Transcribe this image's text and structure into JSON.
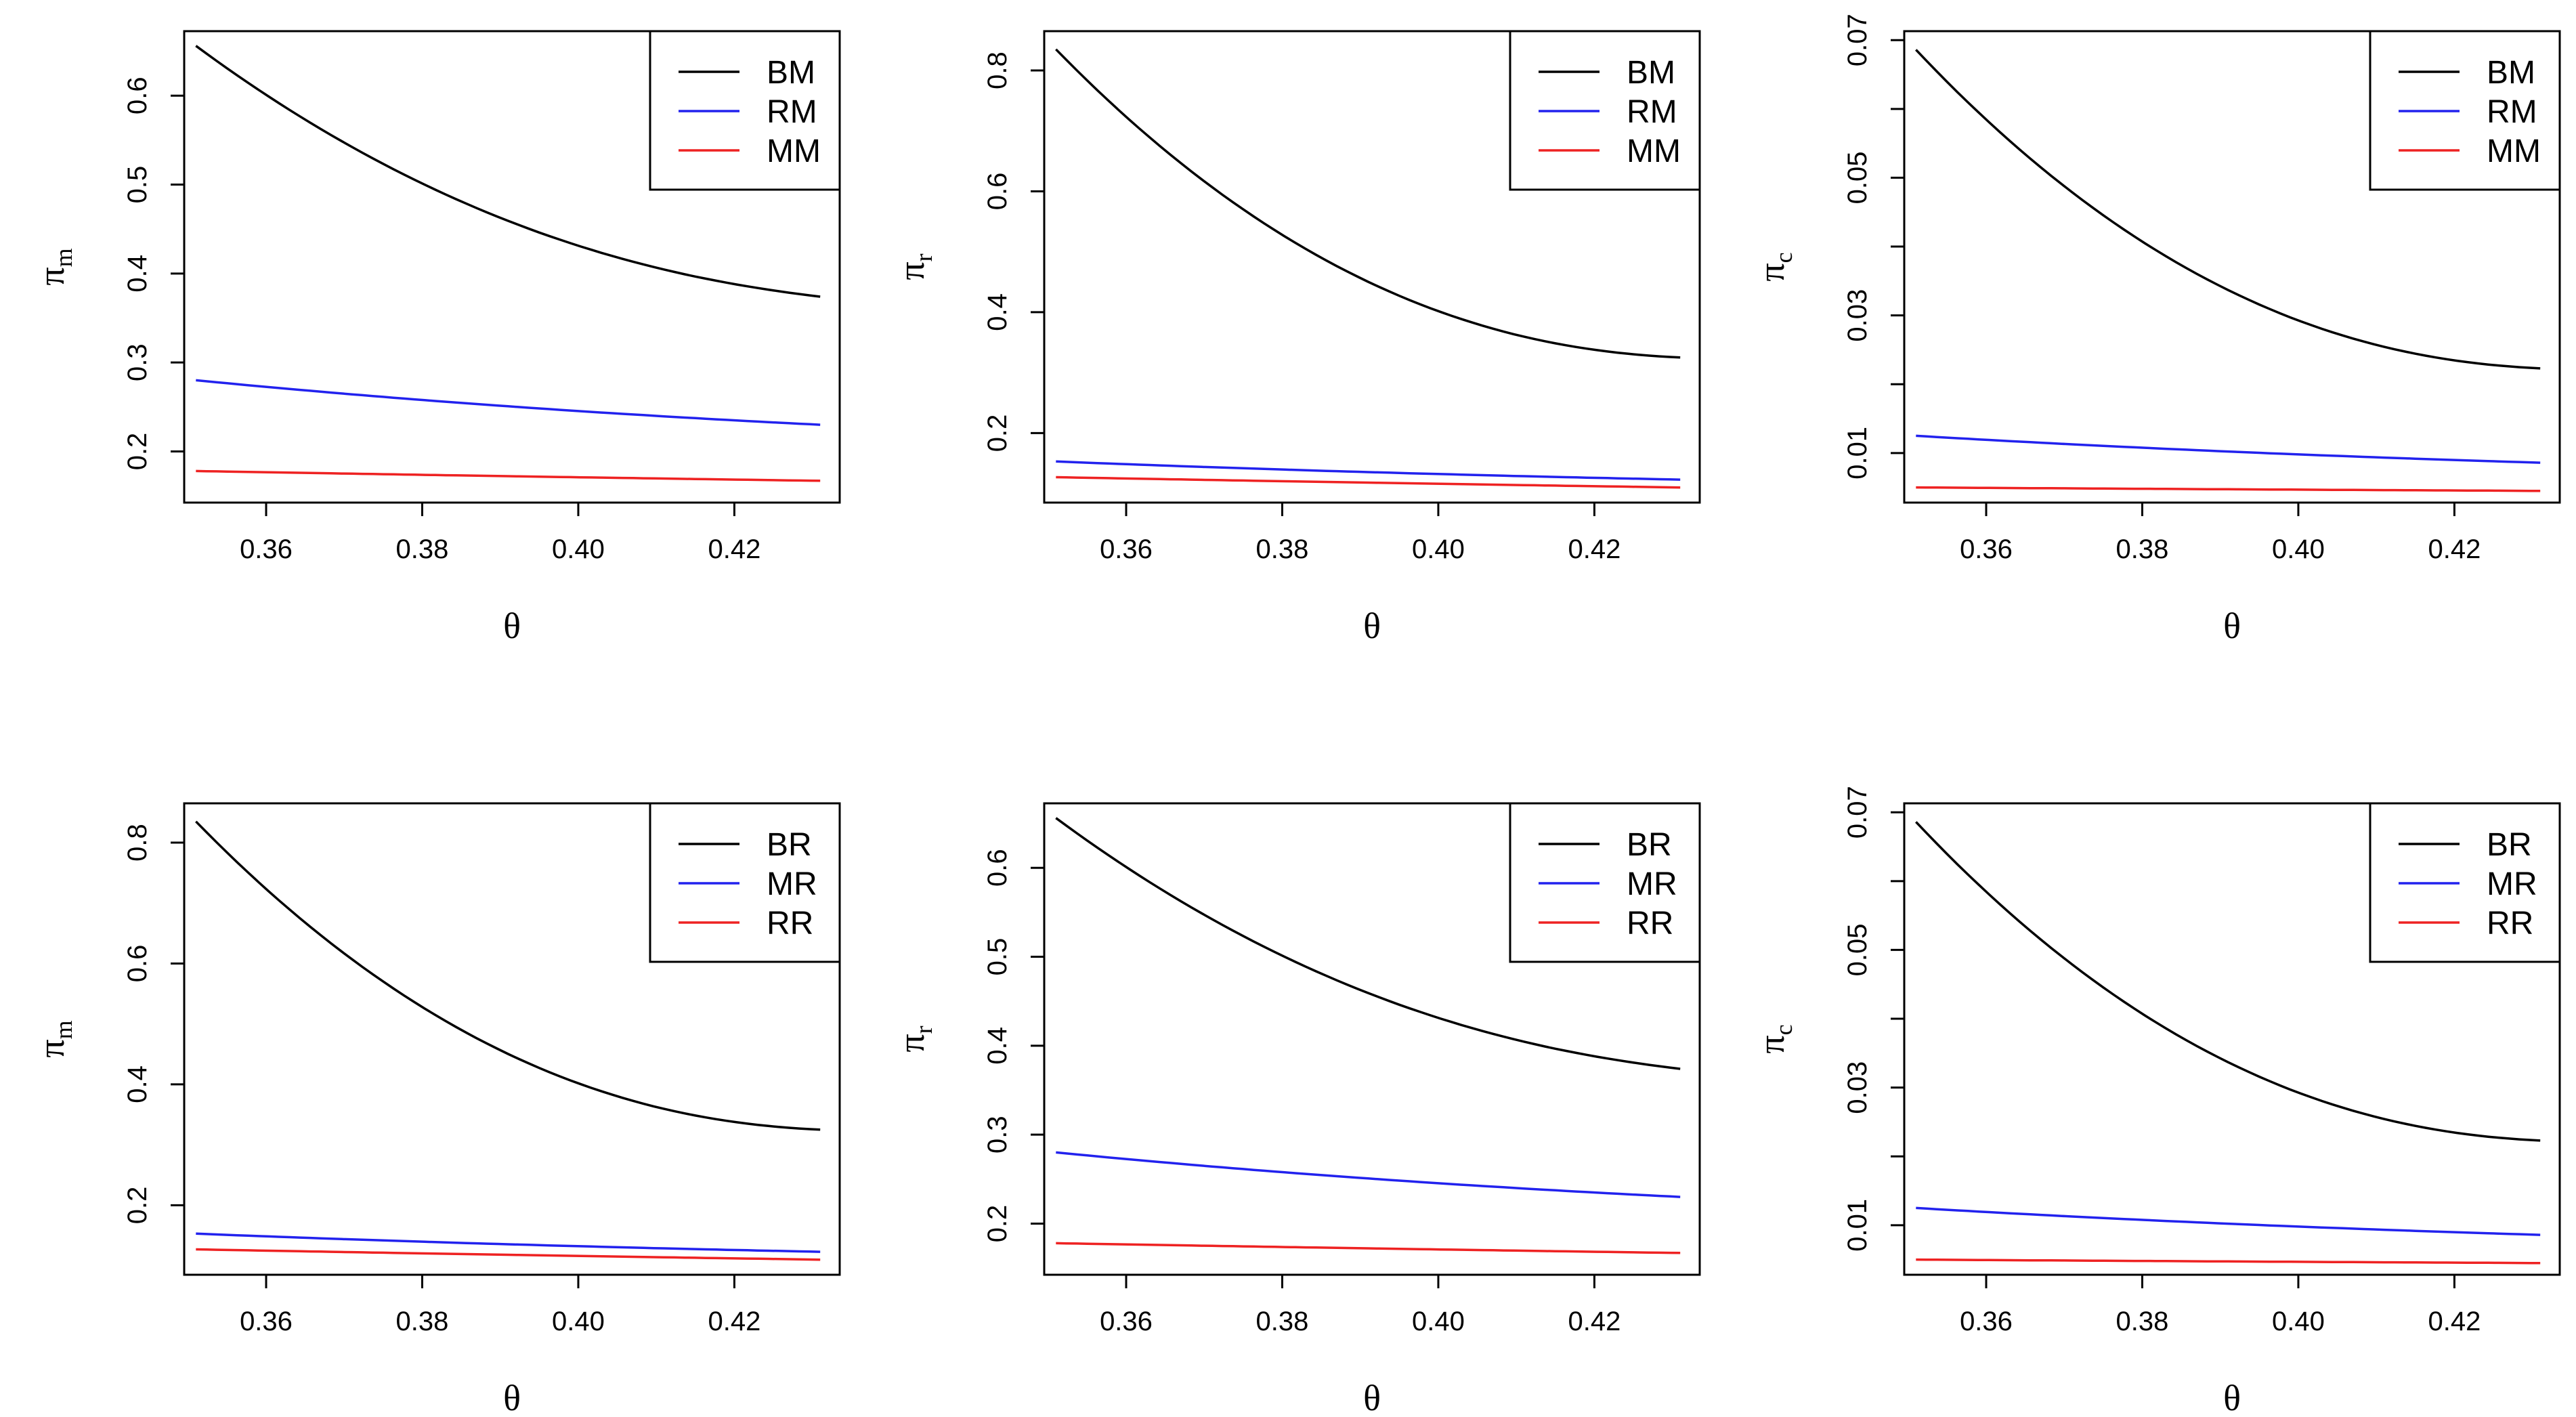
{
  "figure": {
    "xlabel": "θ"
  },
  "colors": {
    "black": "#000000",
    "blue": "#2222ee",
    "red": "#ee2222"
  },
  "chart_data": [
    {
      "type": "line",
      "ylabel_main": "π",
      "ylabel_sub": "m",
      "xlim": [
        0.3495,
        0.4335
      ],
      "ylim": [
        0.1425,
        0.6725
      ],
      "xticks": [
        0.36,
        0.38,
        0.4,
        0.42
      ],
      "xtick_labels": [
        "0.36",
        "0.38",
        "0.40",
        "0.42"
      ],
      "yticks": [
        0.2,
        0.3,
        0.4,
        0.5,
        0.6
      ],
      "ytick_labels": [
        "0.2",
        "0.3",
        "0.4",
        "0.5",
        "0.6"
      ],
      "legend": {
        "position": "top-right",
        "entries": [
          "BM",
          "RM",
          "MM"
        ]
      },
      "x": [
        0.351,
        0.431
      ],
      "series": [
        {
          "name": "BM",
          "color_key": "black",
          "start": 0.656,
          "end": 0.374,
          "curvature": 0.7
        },
        {
          "name": "RM",
          "color_key": "blue",
          "start": 0.28,
          "end": 0.23,
          "curvature": 0.3
        },
        {
          "name": "MM",
          "color_key": "red",
          "start": 0.178,
          "end": 0.167,
          "curvature": 0.1
        }
      ]
    },
    {
      "type": "line",
      "ylabel_main": "π",
      "ylabel_sub": "r",
      "xlim": [
        0.3495,
        0.4335
      ],
      "ylim": [
        0.085,
        0.865
      ],
      "xticks": [
        0.36,
        0.38,
        0.4,
        0.42
      ],
      "xtick_labels": [
        "0.36",
        "0.38",
        "0.40",
        "0.42"
      ],
      "yticks": [
        0.2,
        0.4,
        0.6,
        0.8
      ],
      "ytick_labels": [
        "0.2",
        "0.4",
        "0.6",
        "0.8"
      ],
      "legend": {
        "position": "top-right",
        "entries": [
          "BM",
          "RM",
          "MM"
        ]
      },
      "x": [
        0.351,
        0.431
      ],
      "series": [
        {
          "name": "BM",
          "color_key": "black",
          "start": 0.835,
          "end": 0.325,
          "curvature": 0.9
        },
        {
          "name": "RM",
          "color_key": "blue",
          "start": 0.153,
          "end": 0.123,
          "curvature": 0.3
        },
        {
          "name": "MM",
          "color_key": "red",
          "start": 0.127,
          "end": 0.11,
          "curvature": 0.1
        }
      ]
    },
    {
      "type": "line",
      "ylabel_main": "π",
      "ylabel_sub": "c",
      "xlim": [
        0.3495,
        0.4335
      ],
      "ylim": [
        0.0028,
        0.0713
      ],
      "xticks": [
        0.36,
        0.38,
        0.4,
        0.42
      ],
      "xtick_labels": [
        "0.36",
        "0.38",
        "0.40",
        "0.42"
      ],
      "yticks": [
        0.01,
        0.02,
        0.03,
        0.04,
        0.05,
        0.06,
        0.07
      ],
      "ytick_labels": [
        "0.01",
        "",
        "0.03",
        "",
        "0.05",
        "",
        "0.07"
      ],
      "legend": {
        "position": "top-right",
        "entries": [
          "BM",
          "RM",
          "MM"
        ]
      },
      "x": [
        0.351,
        0.431
      ],
      "series": [
        {
          "name": "BM",
          "color_key": "black",
          "start": 0.0686,
          "end": 0.0223,
          "curvature": 0.9
        },
        {
          "name": "RM",
          "color_key": "blue",
          "start": 0.0125,
          "end": 0.0086,
          "curvature": 0.3
        },
        {
          "name": "MM",
          "color_key": "red",
          "start": 0.005,
          "end": 0.0045,
          "curvature": 0.1
        }
      ]
    },
    {
      "type": "line",
      "ylabel_main": "π",
      "ylabel_sub": "m",
      "xlim": [
        0.3495,
        0.4335
      ],
      "ylim": [
        0.085,
        0.865
      ],
      "xticks": [
        0.36,
        0.38,
        0.4,
        0.42
      ],
      "xtick_labels": [
        "0.36",
        "0.38",
        "0.40",
        "0.42"
      ],
      "yticks": [
        0.2,
        0.4,
        0.6,
        0.8
      ],
      "ytick_labels": [
        "0.2",
        "0.4",
        "0.6",
        "0.8"
      ],
      "legend": {
        "position": "top-right",
        "entries": [
          "BR",
          "MR",
          "RR"
        ]
      },
      "x": [
        0.351,
        0.431
      ],
      "series": [
        {
          "name": "BR",
          "color_key": "black",
          "start": 0.835,
          "end": 0.325,
          "curvature": 0.9
        },
        {
          "name": "MR",
          "color_key": "blue",
          "start": 0.153,
          "end": 0.123,
          "curvature": 0.3
        },
        {
          "name": "RR",
          "color_key": "red",
          "start": 0.127,
          "end": 0.11,
          "curvature": 0.1
        }
      ]
    },
    {
      "type": "line",
      "ylabel_main": "π",
      "ylabel_sub": "r",
      "xlim": [
        0.3495,
        0.4335
      ],
      "ylim": [
        0.1425,
        0.6725
      ],
      "xticks": [
        0.36,
        0.38,
        0.4,
        0.42
      ],
      "xtick_labels": [
        "0.36",
        "0.38",
        "0.40",
        "0.42"
      ],
      "yticks": [
        0.2,
        0.3,
        0.4,
        0.5,
        0.6
      ],
      "ytick_labels": [
        "0.2",
        "0.3",
        "0.4",
        "0.5",
        "0.6"
      ],
      "legend": {
        "position": "top-right",
        "entries": [
          "BR",
          "MR",
          "RR"
        ]
      },
      "x": [
        0.351,
        0.431
      ],
      "series": [
        {
          "name": "BR",
          "color_key": "black",
          "start": 0.656,
          "end": 0.374,
          "curvature": 0.7
        },
        {
          "name": "MR",
          "color_key": "blue",
          "start": 0.28,
          "end": 0.23,
          "curvature": 0.3
        },
        {
          "name": "RR",
          "color_key": "red",
          "start": 0.178,
          "end": 0.167,
          "curvature": 0.1
        }
      ]
    },
    {
      "type": "line",
      "ylabel_main": "π",
      "ylabel_sub": "c",
      "xlim": [
        0.3495,
        0.4335
      ],
      "ylim": [
        0.0028,
        0.0713
      ],
      "xticks": [
        0.36,
        0.38,
        0.4,
        0.42
      ],
      "xtick_labels": [
        "0.36",
        "0.38",
        "0.40",
        "0.42"
      ],
      "yticks": [
        0.01,
        0.02,
        0.03,
        0.04,
        0.05,
        0.06,
        0.07
      ],
      "ytick_labels": [
        "0.01",
        "",
        "0.03",
        "",
        "0.05",
        "",
        "0.07"
      ],
      "legend": {
        "position": "top-right",
        "entries": [
          "BR",
          "MR",
          "RR"
        ]
      },
      "x": [
        0.351,
        0.431
      ],
      "series": [
        {
          "name": "BR",
          "color_key": "black",
          "start": 0.0686,
          "end": 0.0223,
          "curvature": 0.9
        },
        {
          "name": "MR",
          "color_key": "blue",
          "start": 0.0125,
          "end": 0.0086,
          "curvature": 0.3
        },
        {
          "name": "RR",
          "color_key": "red",
          "start": 0.005,
          "end": 0.0045,
          "curvature": 0.1
        }
      ]
    }
  ]
}
